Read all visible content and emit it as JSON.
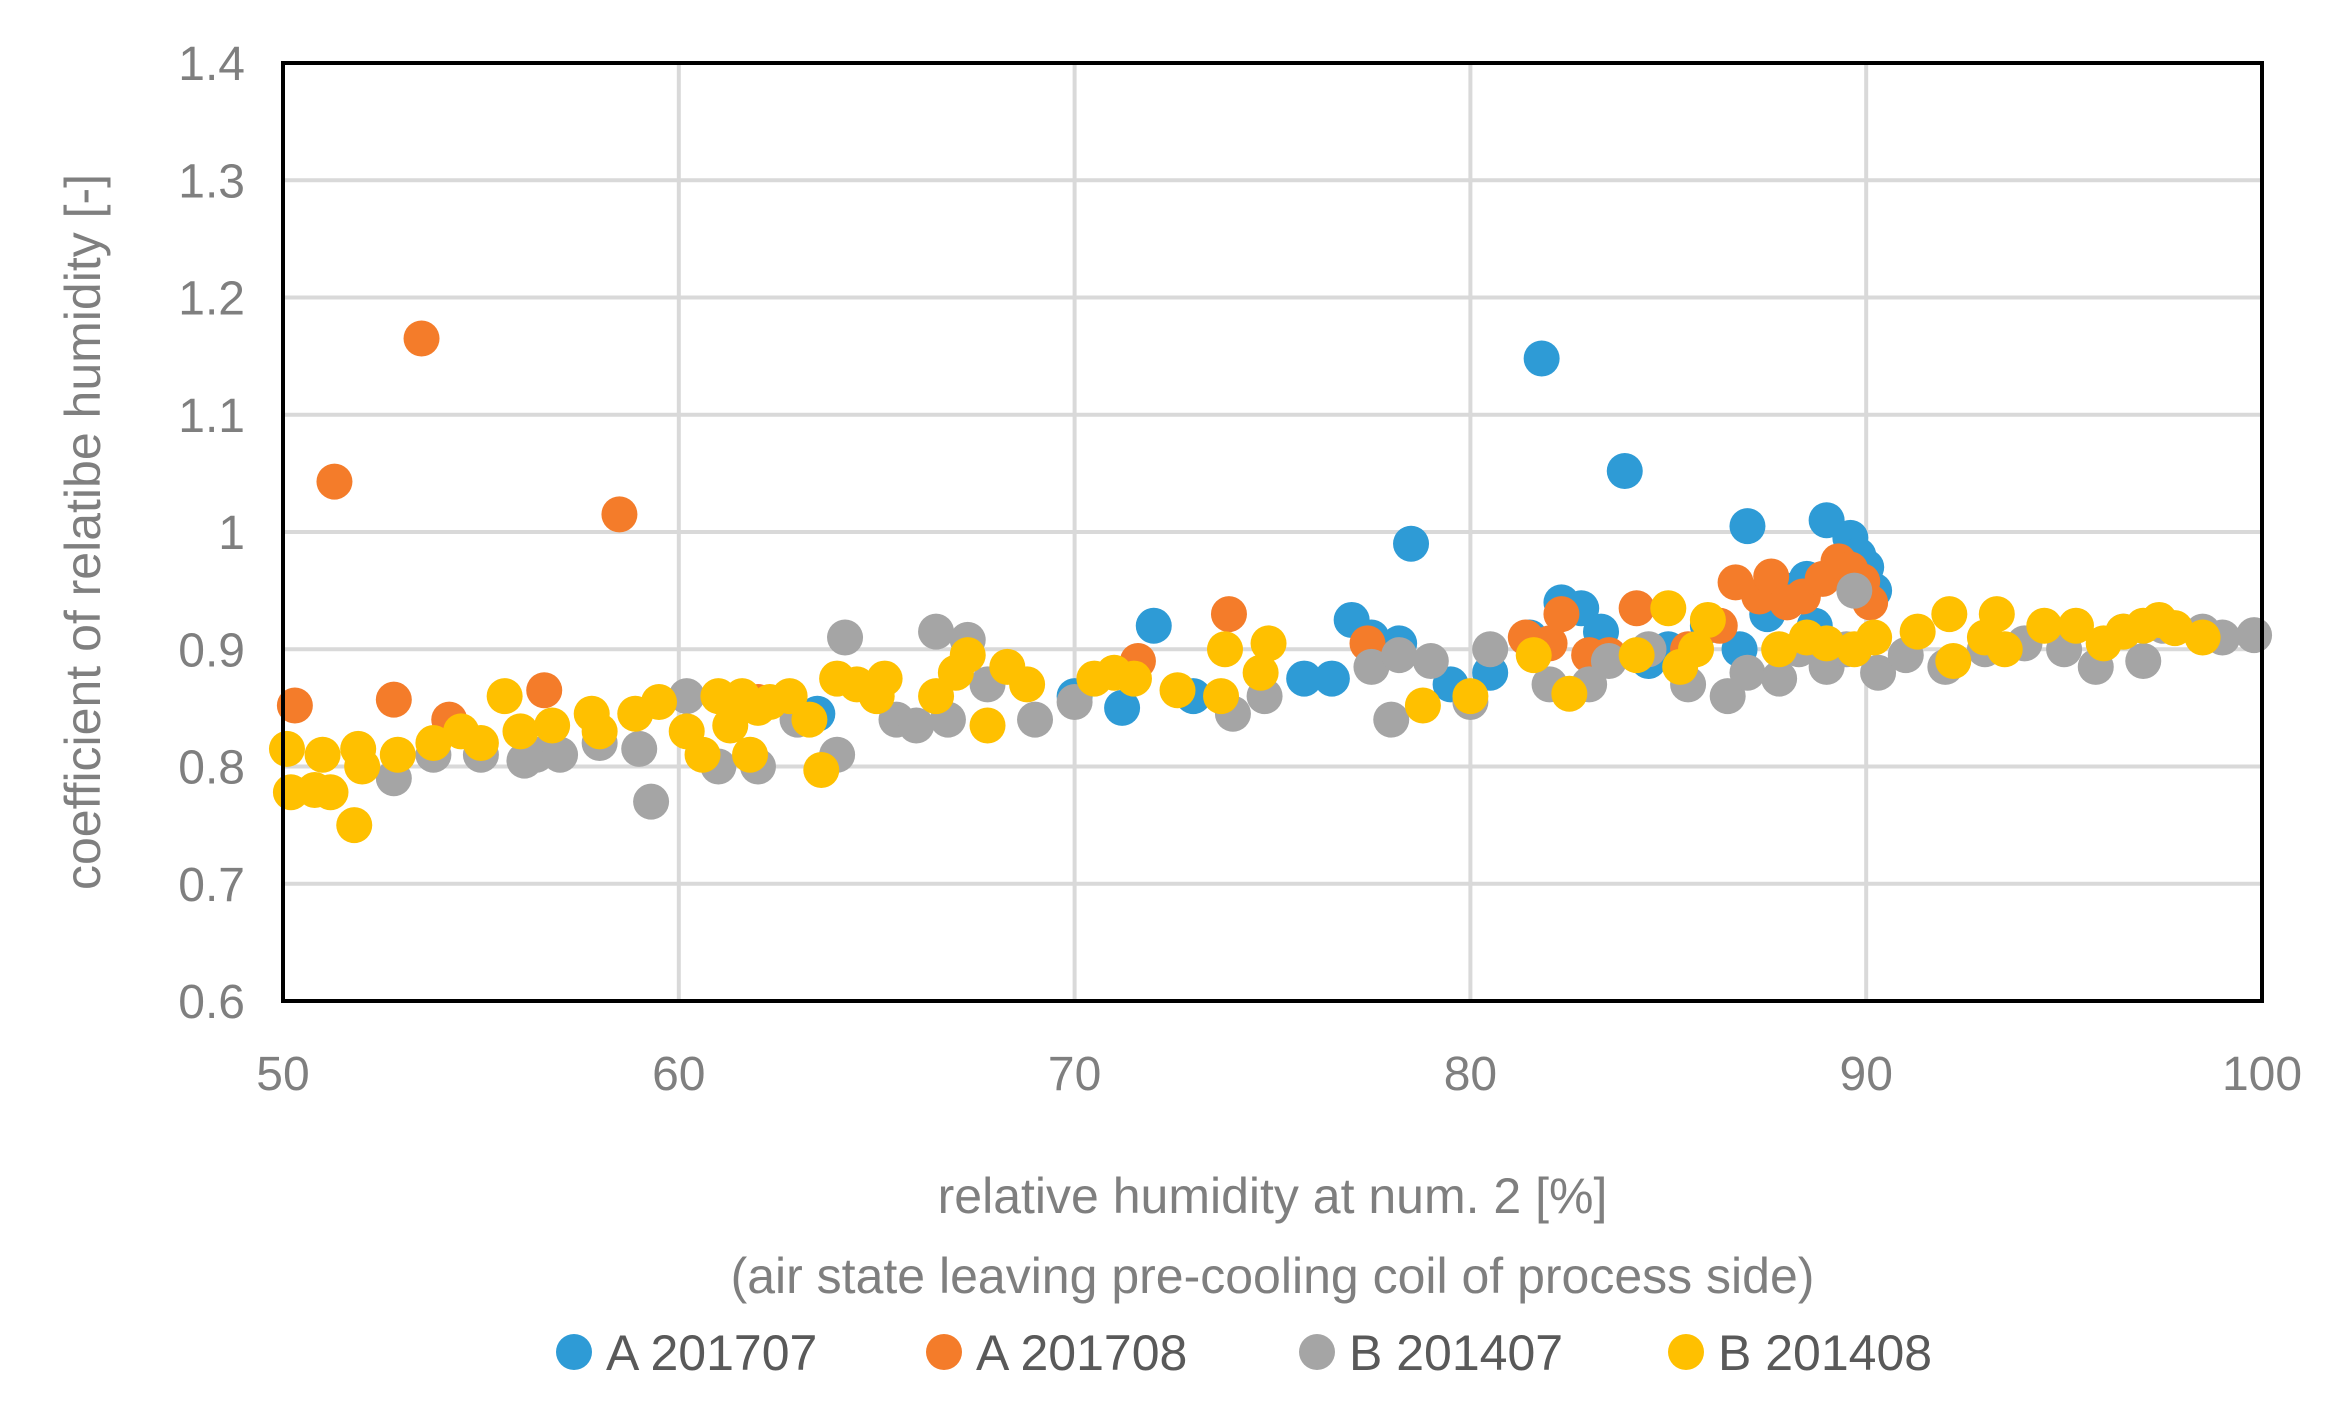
{
  "chart_data": {
    "type": "scatter",
    "title": "",
    "xlabel": "relative humidity at num. 2 [%]",
    "xlabel_line2": "(air state leaving pre-cooling coil of process side)",
    "ylabel": "coefficient of relatibe humidity [-]",
    "xlim": [
      50,
      100
    ],
    "ylim": [
      0.6,
      1.4
    ],
    "xticks": [
      50,
      60,
      70,
      80,
      90,
      100
    ],
    "yticks": [
      0.6,
      0.7,
      0.8,
      0.9,
      1,
      1.1,
      1.2,
      1.3,
      1.4
    ],
    "xtick_labels": [
      "50",
      "60",
      "70",
      "80",
      "90",
      "100"
    ],
    "ytick_labels": [
      "0.6",
      "0.7",
      "0.8",
      "0.9",
      "1",
      "1.1",
      "1.2",
      "1.3",
      "1.4"
    ],
    "grid": true,
    "legend_position": "bottom",
    "series": [
      {
        "name": "A 201707",
        "color": "#2e9bd6",
        "x": [
          63.5,
          70.0,
          71.2,
          72.0,
          73.0,
          75.8,
          76.5,
          77.0,
          77.5,
          78.2,
          78.5,
          79.5,
          80.5,
          81.5,
          81.8,
          82.3,
          82.8,
          83.3,
          83.9,
          84.5,
          85.0,
          86.0,
          86.8,
          87.0,
          87.5,
          88.0,
          88.5,
          89.0,
          89.3,
          89.6,
          89.8,
          90.0,
          90.2,
          88.7,
          89.1
        ],
        "y": [
          0.845,
          0.86,
          0.85,
          0.92,
          0.86,
          0.875,
          0.875,
          0.925,
          0.91,
          0.905,
          0.99,
          0.87,
          0.88,
          0.91,
          1.148,
          0.94,
          0.935,
          0.915,
          1.052,
          0.89,
          0.9,
          0.92,
          0.9,
          1.005,
          0.93,
          0.95,
          0.96,
          1.01,
          0.97,
          0.995,
          0.98,
          0.97,
          0.95,
          0.92,
          0.9
        ]
      },
      {
        "name": "A 201708",
        "color": "#f47c2a",
        "x": [
          50.3,
          51.3,
          52.8,
          53.5,
          54.2,
          56.6,
          58.5,
          62.0,
          71.6,
          73.9,
          77.4,
          81.4,
          82.0,
          82.3,
          83.0,
          83.5,
          84.2,
          85.5,
          86.3,
          86.7,
          87.3,
          87.6,
          88.0,
          88.4,
          88.9,
          89.3,
          89.6,
          89.9,
          90.1
        ],
        "y": [
          0.852,
          1.043,
          0.857,
          1.165,
          0.84,
          0.865,
          1.015,
          0.855,
          0.89,
          0.93,
          0.905,
          0.91,
          0.905,
          0.93,
          0.895,
          0.895,
          0.935,
          0.9,
          0.92,
          0.957,
          0.945,
          0.962,
          0.94,
          0.945,
          0.96,
          0.975,
          0.968,
          0.958,
          0.94
        ]
      },
      {
        "name": "B 201407",
        "color": "#a5a5a5",
        "x": [
          52.8,
          53.8,
          55.0,
          56.1,
          56.4,
          57.0,
          58.0,
          59.0,
          59.3,
          60.2,
          61.0,
          62.0,
          63.0,
          64.0,
          64.2,
          65.5,
          66.0,
          66.5,
          66.8,
          67.3,
          67.8,
          69.0,
          70.0,
          74.0,
          74.8,
          77.5,
          78.0,
          78.2,
          79.0,
          80.0,
          80.5,
          82.0,
          83.0,
          83.5,
          84.5,
          85.5,
          86.5,
          87.0,
          87.8,
          88.3,
          89.0,
          89.5,
          89.7,
          90.3,
          91.0,
          92.0,
          93.0,
          94.0,
          95.0,
          95.8,
          96.5,
          97.0,
          97.5,
          98.5,
          99.0,
          99.8
        ],
        "y": [
          0.79,
          0.81,
          0.81,
          0.805,
          0.81,
          0.81,
          0.82,
          0.815,
          0.77,
          0.86,
          0.8,
          0.8,
          0.84,
          0.81,
          0.91,
          0.84,
          0.835,
          0.915,
          0.84,
          0.908,
          0.87,
          0.84,
          0.855,
          0.845,
          0.86,
          0.885,
          0.84,
          0.895,
          0.89,
          0.855,
          0.9,
          0.87,
          0.87,
          0.89,
          0.9,
          0.87,
          0.86,
          0.88,
          0.875,
          0.9,
          0.885,
          0.9,
          0.95,
          0.88,
          0.895,
          0.885,
          0.9,
          0.905,
          0.9,
          0.885,
          0.915,
          0.89,
          0.92,
          0.915,
          0.91,
          0.912
        ]
      },
      {
        "name": "B 201408",
        "color": "#ffc000",
        "x": [
          50.1,
          50.2,
          50.8,
          51.0,
          51.2,
          51.8,
          51.9,
          52.0,
          52.9,
          53.8,
          54.5,
          55.0,
          55.6,
          56.0,
          56.8,
          57.8,
          58.0,
          58.9,
          59.5,
          60.2,
          60.6,
          61.0,
          61.3,
          61.6,
          61.8,
          62.0,
          62.3,
          62.8,
          63.3,
          63.6,
          64.0,
          64.5,
          65.0,
          65.2,
          66.5,
          67.0,
          67.3,
          67.8,
          68.3,
          68.8,
          70.5,
          71.0,
          71.5,
          72.6,
          73.7,
          73.8,
          74.7,
          74.9,
          78.8,
          80.0,
          81.6,
          82.5,
          84.2,
          85.0,
          85.3,
          85.7,
          86.0,
          87.8,
          88.5,
          89.0,
          89.7,
          90.2,
          91.3,
          92.1,
          92.2,
          93.0,
          93.3,
          93.5,
          94.5,
          95.3,
          96.0,
          96.5,
          97.0,
          97.4,
          97.8,
          98.5
        ],
        "y": [
          0.815,
          0.778,
          0.78,
          0.81,
          0.778,
          0.75,
          0.815,
          0.8,
          0.81,
          0.82,
          0.83,
          0.82,
          0.86,
          0.83,
          0.835,
          0.845,
          0.83,
          0.845,
          0.855,
          0.83,
          0.81,
          0.86,
          0.835,
          0.86,
          0.81,
          0.85,
          0.855,
          0.86,
          0.84,
          0.797,
          0.875,
          0.87,
          0.86,
          0.875,
          0.86,
          0.88,
          0.895,
          0.835,
          0.885,
          0.87,
          0.875,
          0.88,
          0.875,
          0.865,
          0.86,
          0.9,
          0.88,
          0.905,
          0.852,
          0.86,
          0.895,
          0.862,
          0.895,
          0.935,
          0.885,
          0.9,
          0.925,
          0.9,
          0.91,
          0.905,
          0.9,
          0.91,
          0.915,
          0.93,
          0.89,
          0.91,
          0.93,
          0.9,
          0.92,
          0.92,
          0.905,
          0.915,
          0.92,
          0.925,
          0.918,
          0.91
        ]
      }
    ]
  }
}
